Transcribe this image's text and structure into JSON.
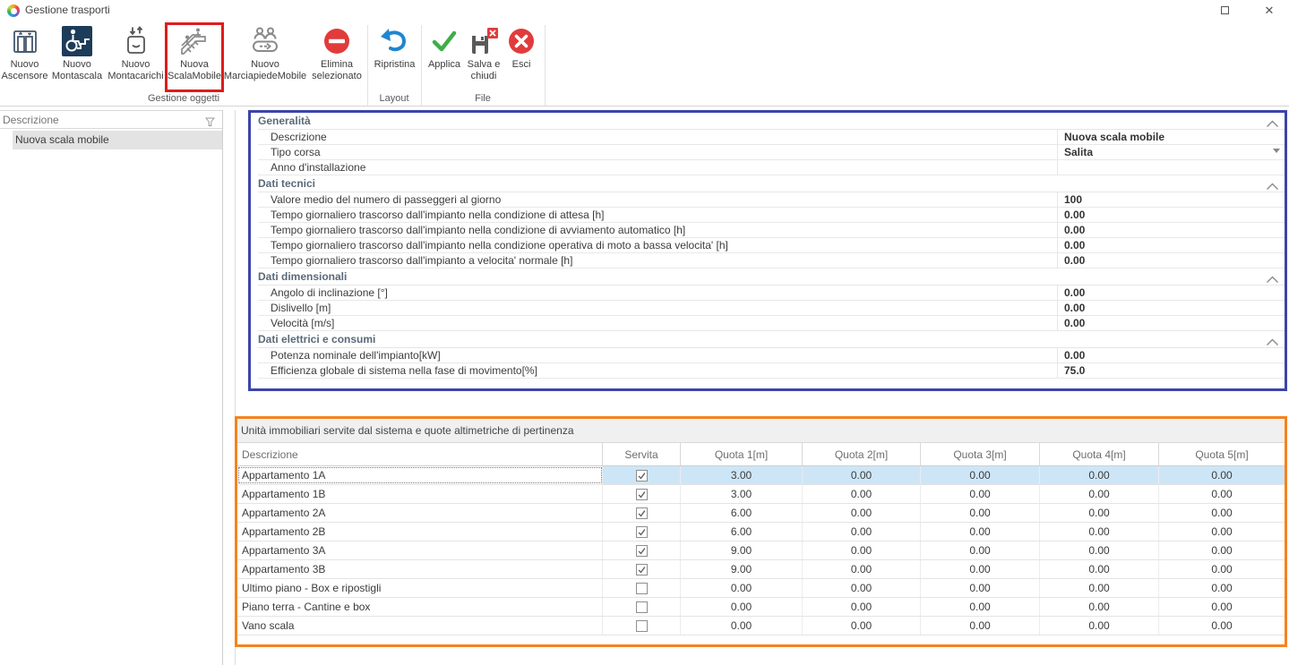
{
  "window": {
    "title": "Gestione trasporti",
    "maximize_glyph": "",
    "close_glyph": "✕"
  },
  "ribbon": {
    "buttons": [
      {
        "id": "nuovo-ascensore",
        "icon": "elevator",
        "label1": "Nuovo",
        "label2": "Ascensore",
        "highlighted": false
      },
      {
        "id": "nuovo-montascala",
        "icon": "wheelchair",
        "label1": "Nuovo",
        "label2": "Montascala",
        "highlighted": false
      },
      {
        "id": "nuovo-montacarichi",
        "icon": "liftbox",
        "label1": "Nuovo",
        "label2": "Montacarichi",
        "highlighted": false
      },
      {
        "id": "nuova-scalamobile",
        "icon": "escalator",
        "label1": "Nuova",
        "label2": "ScalaMobile",
        "highlighted": true
      },
      {
        "id": "nuovo-marciapiedemobile",
        "icon": "walkway",
        "label1": "Nuovo",
        "label2": "MarciapiedeMobile",
        "highlighted": false
      },
      {
        "id": "elimina-selezionato",
        "icon": "noentry",
        "label1": "Elimina",
        "label2": "selezionato",
        "highlighted": false
      },
      {
        "id": "ripristina",
        "icon": "undo",
        "label1": "Ripristina",
        "label2": "",
        "highlighted": false
      },
      {
        "id": "applica",
        "icon": "check",
        "label1": "Applica",
        "label2": "",
        "highlighted": false
      },
      {
        "id": "salva-e-chiudi",
        "icon": "saveclose",
        "label1": "Salva e",
        "label2": "chiudi",
        "highlighted": false
      },
      {
        "id": "esci",
        "icon": "exit",
        "label1": "Esci",
        "label2": "",
        "highlighted": false
      }
    ],
    "groups": [
      {
        "label": "Gestione oggetti"
      },
      {
        "label": "Layout"
      },
      {
        "label": "File"
      }
    ]
  },
  "sidebar": {
    "header": "Descrizione",
    "items": [
      {
        "label": "Nuova scala mobile"
      }
    ]
  },
  "form": {
    "sections": [
      {
        "title": "Generalità",
        "rows": [
          {
            "label": "Descrizione",
            "value": "Nuova scala mobile",
            "dropdown": false
          },
          {
            "label": "Tipo corsa",
            "value": "Salita",
            "dropdown": true
          },
          {
            "label": "Anno d'installazione",
            "value": "",
            "dropdown": false
          }
        ]
      },
      {
        "title": "Dati tecnici",
        "rows": [
          {
            "label": "Valore medio del numero di passeggeri al giorno",
            "value": "100",
            "dropdown": false
          },
          {
            "label": "Tempo giornaliero trascorso dall'impianto nella condizione di attesa [h]",
            "value": "0.00",
            "dropdown": false
          },
          {
            "label": "Tempo giornaliero trascorso dall'impianto nella condizione di avviamento automatico [h]",
            "value": "0.00",
            "dropdown": false
          },
          {
            "label": "Tempo giornaliero trascorso dall'impianto nella condizione operativa di moto a bassa velocita' [h]",
            "value": "0.00",
            "dropdown": false
          },
          {
            "label": "Tempo giornaliero trascorso dall'impianto a velocita' normale [h]",
            "value": "0.00",
            "dropdown": false
          }
        ]
      },
      {
        "title": "Dati dimensionali",
        "rows": [
          {
            "label": "Angolo di inclinazione [°]",
            "value": "0.00",
            "dropdown": false
          },
          {
            "label": "Dislivello [m]",
            "value": "0.00",
            "dropdown": false
          },
          {
            "label": "Velocità [m/s]",
            "value": "0.00",
            "dropdown": false
          }
        ]
      },
      {
        "title": "Dati elettrici e consumi",
        "rows": [
          {
            "label": "Potenza nominale dell'impianto[kW]",
            "value": "0.00",
            "dropdown": false
          },
          {
            "label": "Efficienza globale di sistema nella fase di movimento[%]",
            "value": "75.0",
            "dropdown": false
          }
        ]
      }
    ]
  },
  "units_table": {
    "title": "Unità immobiliari servite dal sistema e quote altimetriche di pertinenza",
    "columns": [
      "Descrizione",
      "Servita",
      "Quota 1[m]",
      "Quota 2[m]",
      "Quota 3[m]",
      "Quota 4[m]",
      "Quota 5[m]"
    ],
    "rows": [
      {
        "descrizione": "Appartamento 1A",
        "servita": true,
        "quote": [
          "3.00",
          "0.00",
          "0.00",
          "0.00",
          "0.00"
        ],
        "selected": true
      },
      {
        "descrizione": "Appartamento 1B",
        "servita": true,
        "quote": [
          "3.00",
          "0.00",
          "0.00",
          "0.00",
          "0.00"
        ],
        "selected": false
      },
      {
        "descrizione": "Appartamento 2A",
        "servita": true,
        "quote": [
          "6.00",
          "0.00",
          "0.00",
          "0.00",
          "0.00"
        ],
        "selected": false
      },
      {
        "descrizione": "Appartamento 2B",
        "servita": true,
        "quote": [
          "6.00",
          "0.00",
          "0.00",
          "0.00",
          "0.00"
        ],
        "selected": false
      },
      {
        "descrizione": "Appartamento 3A",
        "servita": true,
        "quote": [
          "9.00",
          "0.00",
          "0.00",
          "0.00",
          "0.00"
        ],
        "selected": false
      },
      {
        "descrizione": "Appartamento 3B",
        "servita": true,
        "quote": [
          "9.00",
          "0.00",
          "0.00",
          "0.00",
          "0.00"
        ],
        "selected": false
      },
      {
        "descrizione": "Ultimo piano - Box e ripostigli",
        "servita": false,
        "quote": [
          "0.00",
          "0.00",
          "0.00",
          "0.00",
          "0.00"
        ],
        "selected": false
      },
      {
        "descrizione": "Piano terra - Cantine e box",
        "servita": false,
        "quote": [
          "0.00",
          "0.00",
          "0.00",
          "0.00",
          "0.00"
        ],
        "selected": false
      },
      {
        "descrizione": "Vano scala",
        "servita": false,
        "quote": [
          "0.00",
          "0.00",
          "0.00",
          "0.00",
          "0.00"
        ],
        "selected": false
      }
    ]
  },
  "colors": {
    "accent_blue": "#3d44a8",
    "accent_orange": "#f5831f",
    "highlight_red": "#e01b1b",
    "selection_blue": "#cde6f7"
  }
}
